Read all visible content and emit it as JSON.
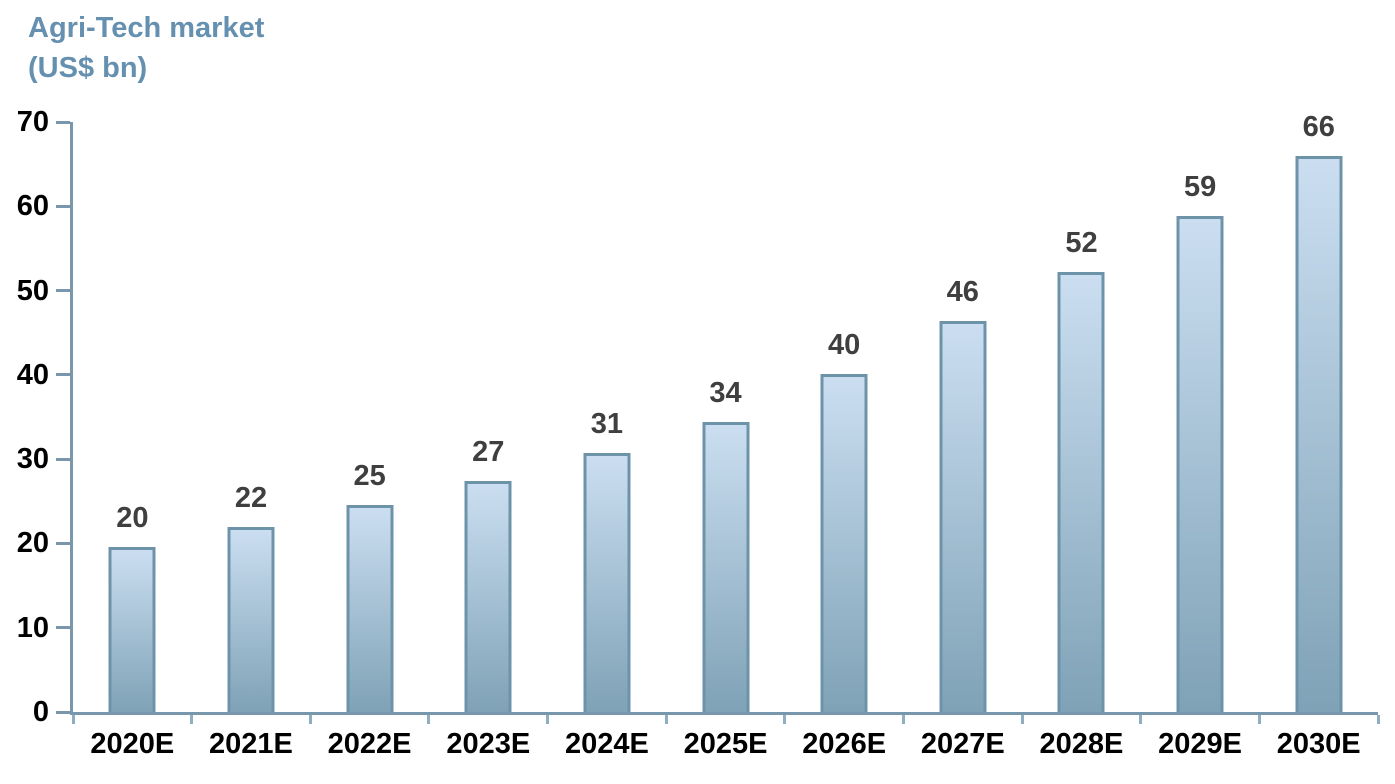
{
  "title": {
    "line1": "Agri-Tech market",
    "line2": "(US$ bn)"
  },
  "chart_data": {
    "type": "bar",
    "title": "Agri-Tech market (US$ bn)",
    "categories": [
      "2020E",
      "2021E",
      "2022E",
      "2023E",
      "2024E",
      "2025E",
      "2026E",
      "2027E",
      "2028E",
      "2029E",
      "2030E"
    ],
    "values": [
      20,
      22,
      25,
      27,
      31,
      34,
      40,
      46,
      52,
      59,
      66
    ],
    "values_precise": [
      19.6,
      21.9,
      24.6,
      27.4,
      30.7,
      34.4,
      40.1,
      46.4,
      52.2,
      58.8,
      66.0
    ],
    "xlabel": "",
    "ylabel": "US$ bn",
    "ylim": [
      0,
      70
    ],
    "yticks": [
      0,
      10,
      20,
      30,
      40,
      50,
      60,
      70
    ],
    "grid": false,
    "legend": "none",
    "data_labels": true
  },
  "colors": {
    "background": "#FFFFFF",
    "title": "#6590B0",
    "axis": "#7896AC",
    "x_tick": "#8FAEC2",
    "bar_border": "#6D93A9",
    "bar_gradient_top": "#CBDEF1",
    "bar_gradient_bottom": "#7FA2B6",
    "data_label": "#3F3F3F",
    "axis_label": "#000000"
  }
}
